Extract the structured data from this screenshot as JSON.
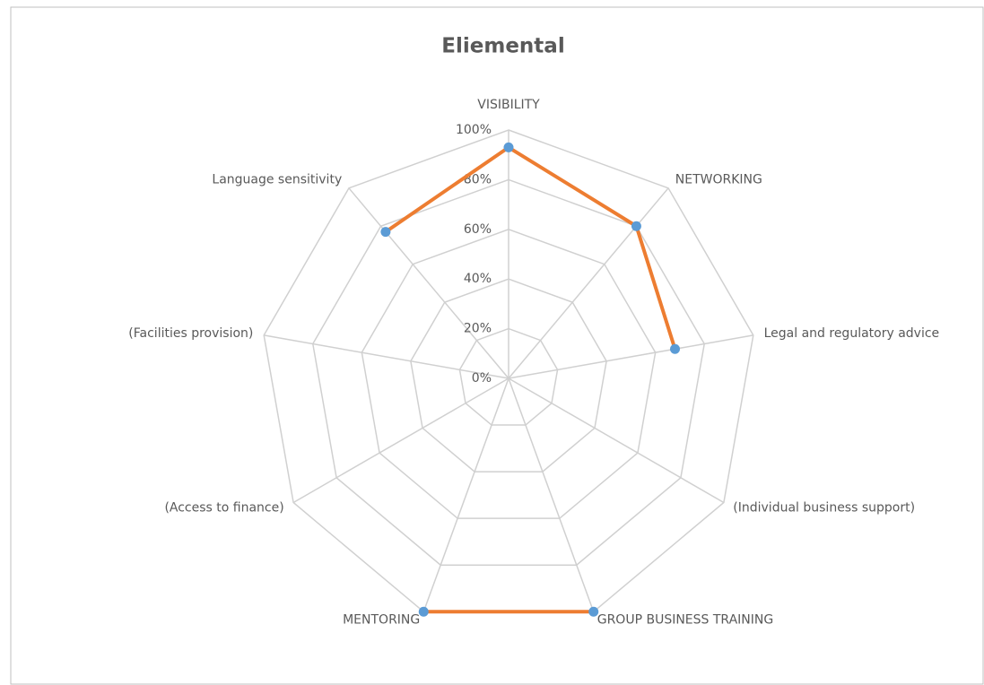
{
  "chart_data": {
    "type": "radar",
    "title": "Eliemental",
    "categories": [
      "VISIBILITY",
      "NETWORKING",
      "Legal and regulatory advice",
      "(Individual business support)",
      "GROUP BUSINESS TRAINING",
      "MENTORING",
      "(Access to finance)",
      "(Facilities provision)",
      "Language sensitivity"
    ],
    "series": [
      {
        "name": "Eliemental",
        "color": "#ed7d31",
        "marker_color": "#5b9bd5",
        "values": [
          93,
          80,
          68,
          null,
          100,
          100,
          null,
          null,
          77
        ]
      }
    ],
    "ylim": [
      0,
      100
    ],
    "yticks": [
      {
        "value": 0,
        "label": "0%"
      },
      {
        "value": 20,
        "label": "20%"
      },
      {
        "value": 40,
        "label": "40%"
      },
      {
        "value": 60,
        "label": "60%"
      },
      {
        "value": 80,
        "label": "80%"
      },
      {
        "value": 100,
        "label": "100%"
      }
    ],
    "grid": true
  }
}
